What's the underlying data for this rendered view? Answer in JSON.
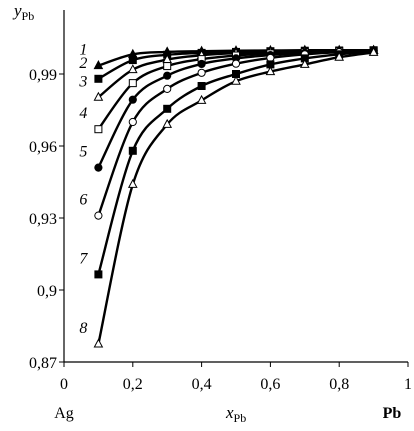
{
  "chart_data": {
    "type": "line",
    "title": "",
    "xlabel": "x",
    "xlabel_sub": "Pb",
    "ylabel": "y",
    "ylabel_sub": "Pb",
    "xlim": [
      0,
      1
    ],
    "ylim": [
      0.87,
      1.0
    ],
    "x_ticks": [
      "0",
      "0,2",
      "0,4",
      "0,6",
      "0,8",
      "1"
    ],
    "y_ticks": [
      "0,87",
      "0,9",
      "0,93",
      "0,96",
      "0,99"
    ],
    "x_tick_values": [
      0,
      0.2,
      0.4,
      0.6,
      0.8,
      1.0
    ],
    "y_tick_values": [
      0.87,
      0.9,
      0.93,
      0.96,
      0.99
    ],
    "x_end_left": "Ag",
    "x_end_right": "Pb",
    "grid": false,
    "x": [
      0.1,
      0.2,
      0.3,
      0.4,
      0.5,
      0.6,
      0.7,
      0.8,
      0.9
    ],
    "series": [
      {
        "name": "1",
        "marker": "filled-triangle",
        "values": [
          0.9935,
          0.9982,
          0.9992,
          0.9995,
          0.9997,
          0.9998,
          0.9999,
          0.9999,
          0.9999
        ]
      },
      {
        "name": "2",
        "marker": "filled-square",
        "values": [
          0.988,
          0.9958,
          0.998,
          0.9988,
          0.9992,
          0.9995,
          0.9997,
          0.9998,
          0.9999
        ]
      },
      {
        "name": "3",
        "marker": "open-triangle",
        "values": [
          0.9803,
          0.9918,
          0.996,
          0.9978,
          0.9987,
          0.9992,
          0.9995,
          0.9997,
          0.9998
        ]
      },
      {
        "name": "4",
        "marker": "open-square",
        "values": [
          0.967,
          0.9862,
          0.9933,
          0.9962,
          0.9977,
          0.9986,
          0.9991,
          0.9995,
          0.9998
        ]
      },
      {
        "name": "5",
        "marker": "filled-circle",
        "values": [
          0.951,
          0.9793,
          0.9893,
          0.9942,
          0.9965,
          0.9979,
          0.9988,
          0.9993,
          0.9997
        ]
      },
      {
        "name": "6",
        "marker": "open-circle",
        "values": [
          0.931,
          0.97,
          0.9838,
          0.9905,
          0.9943,
          0.9967,
          0.9982,
          0.9991,
          0.9996
        ]
      },
      {
        "name": "7",
        "marker": "filled-square",
        "values": [
          0.9065,
          0.958,
          0.9755,
          0.985,
          0.99,
          0.994,
          0.9965,
          0.9982,
          0.9994
        ]
      },
      {
        "name": "8",
        "marker": "open-triangle",
        "values": [
          0.8775,
          0.944,
          0.969,
          0.979,
          0.987,
          0.991,
          0.994,
          0.997,
          0.999
        ]
      }
    ]
  }
}
